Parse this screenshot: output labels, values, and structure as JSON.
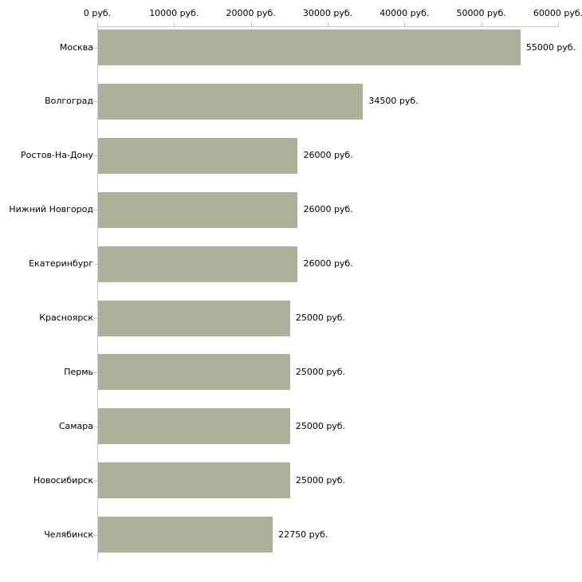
{
  "colors": {
    "bar": "#acb299",
    "x_axis_line": "#ccccb3",
    "x_tick": "#cccc99",
    "y_axis_line": "#cccccc",
    "cat_tick": "#cccccc",
    "text": "#000000",
    "background": "#ffffff"
  },
  "chart_data": {
    "type": "bar",
    "orientation": "horizontal",
    "title": "",
    "xlabel": "",
    "ylabel": "",
    "grid": false,
    "legend": false,
    "categories": [
      "Москва",
      "Волгоград",
      "Ростов-На-Дону",
      "Нижний Новгород",
      "Екатеринбург",
      "Красноярск",
      "Пермь",
      "Самара",
      "Новосибирск",
      "Челябинск"
    ],
    "values": [
      55000,
      34500,
      26000,
      26000,
      26000,
      25000,
      25000,
      25000,
      25000,
      22750
    ],
    "value_labels": [
      "55000 руб.",
      "34500 руб.",
      "26000 руб.",
      "26000 руб.",
      "26000 руб.",
      "25000 руб.",
      "25000 руб.",
      "25000 руб.",
      "25000 руб.",
      "22750 руб."
    ],
    "x_axis": {
      "position": "top",
      "min": 0,
      "max": 60000,
      "ticks": [
        0,
        10000,
        20000,
        30000,
        40000,
        50000,
        60000
      ],
      "tick_labels": [
        "0 руб.",
        "10000 руб.",
        "20000 руб.",
        "30000 руб.",
        "40000 руб.",
        "50000 руб.",
        "60000 руб."
      ],
      "unit": "руб."
    }
  }
}
